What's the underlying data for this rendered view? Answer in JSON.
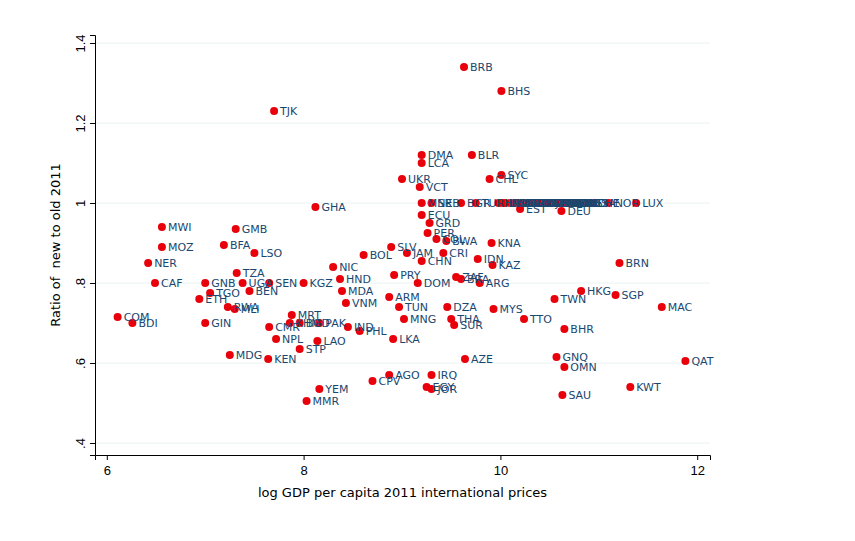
{
  "chart_data": {
    "type": "scatter",
    "x_label": "log GDP per capita 2011 international prices",
    "y_label": "Ratio of  new to old 2011",
    "color": "#e8000b",
    "marker": "circle",
    "grid": true,
    "xlim": [
      5.88,
      12.13
    ],
    "xticks": [
      6,
      8,
      10,
      12
    ],
    "ylim": [
      0.37,
      1.42
    ],
    "yticks": [
      {
        "value": 0.4,
        "label": ".4"
      },
      {
        "value": 0.6,
        "label": ".6"
      },
      {
        "value": 0.8,
        "label": ".8"
      },
      {
        "value": 1,
        "label": "1"
      },
      {
        "value": 1.2,
        "label": "1.2"
      },
      {
        "value": 1.4,
        "label": "1.4"
      }
    ],
    "labels": [
      "BRB",
      "BHS",
      "TJK",
      "DMA",
      "LCA",
      "BLR",
      "UKR",
      "SYC",
      "CHL",
      "VCT",
      "GHA",
      "ECU",
      "GRD",
      "PER",
      "BWA",
      "COL",
      "KNA",
      "SLV",
      "BOL",
      "JAM",
      "CRI",
      "CHN",
      "IDN",
      "KAZ",
      "NIC",
      "BRN",
      "MWI",
      "GMB",
      "MOZ",
      "BFA",
      "LSO",
      "NER",
      "CAF",
      "TZA",
      "UGA",
      "SEN",
      "BEN",
      "GNB",
      "TGO",
      "ETH",
      "RWA",
      "MLI",
      "COM",
      "BDI",
      "GIN",
      "MDG",
      "KEN",
      "NPL",
      "STP",
      "LAO",
      "CMR",
      "MRT",
      "KGZ",
      "HND",
      "MDA",
      "VNM",
      "ARM",
      "PAK",
      "KHM",
      "BGD",
      "PHL",
      "IND",
      "LKA",
      "MNG",
      "TUN",
      "YEM",
      "MMR",
      "CPV",
      "AGO",
      "IRQ",
      "EGY",
      "JOR",
      "AZE",
      "DZA",
      "THA",
      "SUR",
      "MYS",
      "TTO",
      "TWN",
      "HKG",
      "SGP",
      "MAC",
      "BHR",
      "GNQ",
      "OMN",
      "SAU",
      "KWT",
      "QAT",
      "DOM",
      "PRY",
      "BRA",
      "ARG",
      "ZAF",
      "MNE",
      "SRB",
      "BGR",
      "TUR",
      "HRV",
      "LVA",
      "POL",
      "HUN",
      "LTU",
      "SVK",
      "PRT",
      "GRC",
      "CZE",
      "SVN",
      "ISR",
      "KOR",
      "ESP",
      "NZL",
      "ITA",
      "JPN",
      "FRA",
      "GBR",
      "FIN",
      "ISL",
      "BEL",
      "CAN",
      "DNK",
      "AUT",
      "SWE",
      "AUS",
      "IRL",
      "NLD",
      "USA",
      "CHE",
      "NOR",
      "LUX",
      "EST",
      "DEU"
    ],
    "x": [
      9.63,
      10.01,
      7.7,
      9.2,
      9.2,
      9.71,
      9.0,
      10.01,
      9.89,
      9.18,
      8.12,
      9.2,
      9.28,
      9.26,
      9.45,
      9.35,
      9.91,
      8.89,
      8.61,
      9.05,
      9.42,
      9.2,
      9.77,
      9.92,
      8.3,
      11.21,
      6.56,
      7.31,
      6.56,
      7.19,
      7.5,
      6.42,
      6.49,
      7.32,
      7.38,
      7.65,
      7.45,
      7.0,
      7.05,
      6.94,
      7.23,
      7.3,
      6.11,
      6.26,
      7.0,
      7.25,
      7.64,
      7.72,
      7.96,
      8.14,
      7.65,
      7.88,
      8.0,
      8.37,
      8.39,
      8.43,
      8.87,
      8.16,
      7.86,
      7.96,
      8.57,
      8.45,
      8.91,
      9.02,
      8.97,
      8.16,
      8.03,
      8.7,
      8.87,
      9.3,
      9.25,
      9.3,
      9.64,
      9.46,
      9.5,
      9.53,
      9.93,
      10.24,
      10.55,
      10.82,
      11.17,
      11.64,
      10.65,
      10.57,
      10.65,
      10.63,
      11.32,
      11.88,
      9.16,
      8.92,
      9.6,
      9.79,
      9.55,
      9.2,
      9.3,
      9.6,
      9.75,
      9.98,
      10.02,
      10.05,
      10.1,
      10.15,
      10.2,
      10.2,
      10.22,
      10.25,
      10.3,
      10.35,
      10.4,
      10.4,
      10.42,
      10.5,
      10.5,
      10.55,
      10.55,
      10.6,
      10.6,
      10.65,
      10.68,
      10.7,
      10.72,
      10.72,
      10.75,
      10.78,
      10.78,
      10.88,
      10.92,
      11.1,
      11.38,
      10.2,
      10.62
    ],
    "values": [
      1.34,
      1.28,
      1.23,
      1.12,
      1.1,
      1.12,
      1.06,
      1.07,
      1.06,
      1.04,
      0.99,
      0.97,
      0.95,
      0.925,
      0.905,
      0.91,
      0.9,
      0.89,
      0.87,
      0.875,
      0.875,
      0.855,
      0.86,
      0.845,
      0.84,
      0.85,
      0.94,
      0.935,
      0.89,
      0.895,
      0.875,
      0.85,
      0.8,
      0.825,
      0.8,
      0.8,
      0.78,
      0.8,
      0.775,
      0.76,
      0.74,
      0.735,
      0.715,
      0.7,
      0.7,
      0.62,
      0.61,
      0.66,
      0.635,
      0.655,
      0.69,
      0.72,
      0.8,
      0.81,
      0.78,
      0.75,
      0.765,
      0.7,
      0.7,
      0.7,
      0.68,
      0.69,
      0.66,
      0.71,
      0.74,
      0.535,
      0.505,
      0.555,
      0.57,
      0.57,
      0.54,
      0.535,
      0.61,
      0.74,
      0.71,
      0.695,
      0.735,
      0.71,
      0.76,
      0.78,
      0.77,
      0.74,
      0.685,
      0.615,
      0.59,
      0.52,
      0.54,
      0.605,
      0.8,
      0.82,
      0.81,
      0.8,
      0.815,
      1.0,
      1.0,
      1.0,
      1.0,
      1.0,
      1.0,
      1.0,
      1.0,
      1.0,
      1.0,
      1.0,
      1.0,
      1.0,
      1.0,
      1.0,
      1.0,
      1.0,
      1.0,
      1.0,
      1.0,
      1.0,
      1.0,
      1.0,
      1.0,
      1.0,
      1.0,
      1.0,
      1.0,
      1.0,
      1.0,
      1.0,
      1.0,
      1.0,
      1.0,
      1.0,
      1.0,
      0.985,
      0.98
    ]
  }
}
